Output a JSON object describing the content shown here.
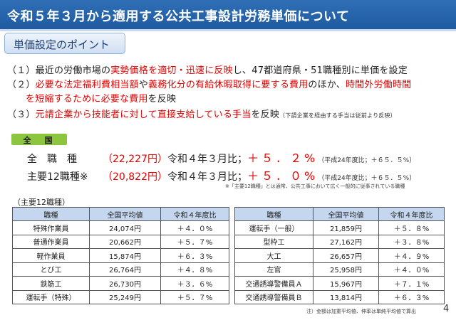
{
  "title": "令和５年３月から適用する公共工事設計労務単価について",
  "point_label": "単価設定のポイント",
  "items": [
    {
      "num": "（１）",
      "pre": "最近の労働市場の",
      "red": "実勢価格を適切・迅速に反映",
      "post": "し、47都道府県・51職種別に単価を設定"
    },
    {
      "num": "（２）",
      "red1": "必要な法定福利費相当額",
      "mid1": "や",
      "red2": "義務化分の有給休暇取得に要する費用",
      "mid2": "のほか、",
      "red3": "時間外労働時間"
    },
    {
      "cont_red": "を短縮するために必要な費用",
      "cont_post": "を反映"
    },
    {
      "num": "（３）",
      "red": "元請企業から技能者に対して直接支給している手当",
      "post": "を反映",
      "note": "（下請企業を経由する手当は従前より反映）"
    }
  ],
  "zenkoku_label": "全　国",
  "summary": [
    {
      "label": "全　職　種",
      "value": "（22,227円）",
      "compare": "令和４年３月比；",
      "pct": "＋５．２%",
      "note": "（平成24年度比；＋６５．５%）"
    },
    {
      "label": "主要12職種※",
      "value": "（20,822円）",
      "compare": "令和４年３月比；",
      "pct": "＋５．０%",
      "note": "（平成24年度比；＋６５．５%）"
    }
  ],
  "footnote1": "※「主要12職種」とは通常、公共工事において広く一般的に従事されている職種",
  "table_title": "（主要12職種）",
  "table_headers": [
    "職種",
    "全国平均値",
    "令和４年度比",
    "職種",
    "全国平均値",
    "令和４年度比"
  ],
  "table_rows": [
    [
      "特殊作業員",
      "24,074円",
      "＋４．０%",
      "運転手（一般）",
      "21,859円",
      "＋５．８%"
    ],
    [
      "普通作業員",
      "20,662円",
      "＋５．７%",
      "型枠工",
      "27,162円",
      "＋３．８%"
    ],
    [
      "軽作業員",
      "15,874円",
      "＋６．３%",
      "大工",
      "26,657円",
      "＋４．９%"
    ],
    [
      "とび工",
      "26,764円",
      "＋４．８%",
      "左官",
      "25,958円",
      "＋４．０%"
    ],
    [
      "鉄筋工",
      "26,730円",
      "＋３．６%",
      "交通誘導警備員Ａ",
      "15,967円",
      "＋７．１%"
    ],
    [
      "運転手（特殊）",
      "25,249円",
      "＋５．７%",
      "交通誘導警備員Ｂ",
      "13,814円",
      "＋６．３%"
    ]
  ],
  "footnote2": "注）金額は加重平均値、伸率は単純平均値で算出",
  "page_number": "4",
  "colors": {
    "title_bg": "#1f5aa0",
    "accent_red": "#e60000",
    "zenkoku_bg": "#8cc63f",
    "header_bg": "#c5d7ee"
  }
}
